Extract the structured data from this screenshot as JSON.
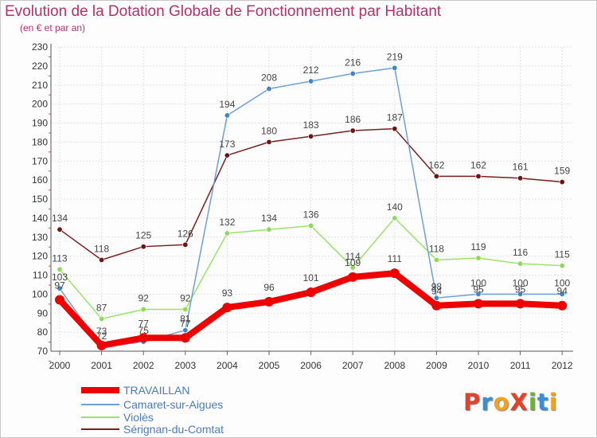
{
  "header": {
    "title": "Evolution de la Dotation Globale de Fonctionnement par Habitant",
    "subtitle": "(en € et par an)"
  },
  "branding": {
    "logo_text": "ProXiti",
    "logo_colors": [
      "#e0432b",
      "#3a8fd4",
      "#f3a31b",
      "#e0432b",
      "#6ab23a",
      "#3a8fd4",
      "#f3a31b"
    ]
  },
  "chart_data": {
    "type": "line",
    "title": "Evolution de la Dotation Globale de Fonctionnement par Habitant",
    "subtitle": "(en € et par an)",
    "xlabel": "",
    "ylabel": "",
    "ylim": [
      70,
      230
    ],
    "y_ticks": [
      70,
      80,
      90,
      100,
      110,
      120,
      130,
      140,
      150,
      160,
      170,
      180,
      190,
      200,
      210,
      220,
      230
    ],
    "grid": true,
    "legend_position": "bottom-left",
    "x": [
      "2000",
      "2001",
      "2002",
      "2003",
      "2004",
      "2005",
      "2006",
      "2007",
      "2008",
      "2009",
      "2010",
      "2011",
      "2012"
    ],
    "series": [
      {
        "name": "TRAVAILLAN",
        "color": "#ee0000",
        "values": [
          97,
          73,
          77,
          77,
          93,
          96,
          101,
          109,
          111,
          94,
          95,
          95,
          94
        ],
        "labels": [
          "97",
          "73",
          "77",
          "77",
          "93",
          "96",
          "101",
          "109",
          "111",
          "94",
          "95",
          "95",
          "94"
        ]
      },
      {
        "name": "Camaret-sur-Aigues",
        "color": "#6f9fd8",
        "values": [
          103,
          72,
          75,
          81,
          194,
          208,
          212,
          216,
          219,
          98,
          100,
          100,
          100
        ],
        "labels": [
          "103",
          "72",
          "75",
          "81",
          "194",
          "208",
          "212",
          "216",
          "219",
          "98",
          "100",
          "100",
          "100"
        ]
      },
      {
        "name": "Violès",
        "color": "#99e36b",
        "values": [
          113,
          87,
          92,
          92,
          132,
          134,
          136,
          114,
          140,
          118,
          119,
          116,
          115
        ],
        "labels": [
          "113",
          "87",
          "92",
          "92",
          "132",
          "134",
          "136",
          "114",
          "140",
          "118",
          "119",
          "116",
          "115"
        ]
      },
      {
        "name": "Sérignan-du-Comtat",
        "color": "#7a1f1f",
        "values": [
          134,
          118,
          125,
          126,
          173,
          180,
          183,
          186,
          187,
          162,
          162,
          161,
          159
        ],
        "labels": [
          "134",
          "118",
          "125",
          "126",
          "173",
          "180",
          "183",
          "186",
          "187",
          "162",
          "162",
          "161",
          "159"
        ]
      }
    ]
  }
}
